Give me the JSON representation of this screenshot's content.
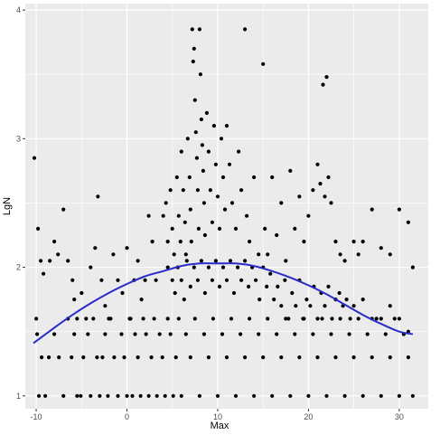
{
  "chart_data": {
    "type": "scatter",
    "title": "",
    "xlabel": "Max",
    "ylabel": "LgN",
    "xlim": [
      -11.2,
      33.2
    ],
    "ylim": [
      0.9,
      4.05
    ],
    "x_ticks": [
      -10,
      0,
      10,
      20,
      30
    ],
    "y_ticks": [
      1,
      2,
      3,
      4
    ],
    "x_tick_labels": [
      "-10",
      "0",
      "10",
      "20",
      "30"
    ],
    "y_tick_labels": [
      "1",
      "2",
      "3",
      "4"
    ],
    "grid": true,
    "legend": "none",
    "colors": {
      "panel": "#ebebeb",
      "grid": "#ffffff",
      "points": "#000000",
      "fit": "#2b2bc8"
    },
    "fit_line": {
      "x": [
        -10.3,
        -8,
        -6,
        -4,
        -2,
        0,
        2,
        4,
        6,
        8,
        10,
        12,
        14,
        16,
        18,
        20,
        22,
        24,
        26,
        28,
        30,
        31.5
      ],
      "y": [
        1.41,
        1.53,
        1.63,
        1.72,
        1.8,
        1.87,
        1.93,
        1.97,
        2.01,
        2.03,
        2.03,
        2.03,
        2.01,
        1.97,
        1.92,
        1.86,
        1.79,
        1.71,
        1.63,
        1.56,
        1.5,
        1.48
      ]
    },
    "series": [
      {
        "points": [
          [
            -10.2,
            2.85
          ],
          [
            -9.8,
            2.3
          ],
          [
            -9.5,
            2.05
          ],
          [
            -9.2,
            1.95
          ],
          [
            -8.5,
            2.05
          ],
          [
            -8.0,
            2.2
          ],
          [
            -7.6,
            2.1
          ],
          [
            -7.0,
            2.45
          ],
          [
            -6.5,
            2.05
          ],
          [
            -6.0,
            1.9
          ],
          [
            -5.8,
            1.75
          ],
          [
            -5.5,
            1.6
          ],
          [
            -5.0,
            1.8
          ],
          [
            -4.5,
            1.6
          ],
          [
            -4.0,
            2.0
          ],
          [
            -3.5,
            2.15
          ],
          [
            -3.2,
            2.55
          ],
          [
            -2.8,
            1.9
          ],
          [
            -2.4,
            1.7
          ],
          [
            -2.0,
            1.6
          ],
          [
            -1.5,
            2.1
          ],
          [
            -1.0,
            1.9
          ],
          [
            -0.5,
            1.8
          ],
          [
            0.0,
            2.15
          ],
          [
            0.4,
            1.6
          ],
          [
            0.8,
            1.9
          ],
          [
            1.2,
            2.05
          ],
          [
            1.6,
            1.75
          ],
          [
            2.0,
            1.9
          ],
          [
            2.4,
            2.4
          ],
          [
            2.8,
            2.2
          ],
          [
            3.2,
            1.9
          ],
          [
            -10.0,
            1.6
          ],
          [
            -9.9,
            1.48
          ],
          [
            -9.7,
            1.0
          ],
          [
            -9.4,
            1.3
          ],
          [
            -9.0,
            1.0
          ],
          [
            -8.6,
            1.3
          ],
          [
            -8.0,
            1.48
          ],
          [
            -7.5,
            1.3
          ],
          [
            -7.0,
            1.0
          ],
          [
            -6.5,
            1.6
          ],
          [
            -6.1,
            1.3
          ],
          [
            -5.8,
            1.48
          ],
          [
            -5.5,
            1.0
          ],
          [
            -5.1,
            1.0
          ],
          [
            -4.8,
            1.3
          ],
          [
            -4.3,
            1.48
          ],
          [
            -4.0,
            1.0
          ],
          [
            -3.7,
            1.6
          ],
          [
            -3.3,
            1.3
          ],
          [
            -3.0,
            1.0
          ],
          [
            -2.7,
            1.3
          ],
          [
            -2.4,
            1.48
          ],
          [
            -2.1,
            1.0
          ],
          [
            -1.8,
            1.6
          ],
          [
            -1.4,
            1.3
          ],
          [
            -1.0,
            1.0
          ],
          [
            -0.6,
            1.48
          ],
          [
            -0.3,
            1.3
          ],
          [
            0.0,
            1.0
          ],
          [
            0.3,
            1.6
          ],
          [
            0.6,
            1.0
          ],
          [
            0.9,
            1.48
          ],
          [
            1.2,
            1.3
          ],
          [
            1.5,
            1.0
          ],
          [
            1.8,
            1.6
          ],
          [
            2.1,
            1.48
          ],
          [
            2.4,
            1.0
          ],
          [
            2.7,
            1.3
          ],
          [
            3.0,
            1.6
          ],
          [
            3.3,
            1.0
          ],
          [
            3.6,
            1.48
          ],
          [
            3.9,
            1.3
          ],
          [
            4.2,
            1.0
          ],
          [
            4.5,
            1.6
          ],
          [
            4.8,
            1.48
          ],
          [
            5.1,
            1.0
          ],
          [
            5.4,
            1.3
          ],
          [
            5.7,
            1.6
          ],
          [
            6.0,
            1.0
          ],
          [
            4.0,
            2.4
          ],
          [
            4.3,
            2.5
          ],
          [
            4.5,
            2.2
          ],
          [
            4.8,
            2.6
          ],
          [
            5.0,
            2.3
          ],
          [
            5.2,
            2.1
          ],
          [
            5.5,
            2.7
          ],
          [
            5.7,
            2.4
          ],
          [
            5.9,
            2.2
          ],
          [
            6.0,
            2.9
          ],
          [
            6.2,
            2.6
          ],
          [
            6.4,
            2.35
          ],
          [
            6.5,
            2.1
          ],
          [
            6.7,
            3.0
          ],
          [
            6.9,
            2.7
          ],
          [
            7.0,
            2.45
          ],
          [
            7.1,
            2.2
          ],
          [
            7.2,
            3.85
          ],
          [
            7.3,
            3.6
          ],
          [
            7.4,
            3.7
          ],
          [
            7.5,
            3.3
          ],
          [
            7.6,
            3.05
          ],
          [
            7.7,
            2.85
          ],
          [
            7.8,
            2.6
          ],
          [
            7.9,
            2.3
          ],
          [
            8.0,
            3.85
          ],
          [
            8.1,
            3.5
          ],
          [
            8.2,
            3.15
          ],
          [
            8.3,
            2.95
          ],
          [
            8.4,
            2.75
          ],
          [
            8.5,
            2.5
          ],
          [
            8.6,
            2.25
          ],
          [
            8.8,
            3.2
          ],
          [
            9.0,
            2.9
          ],
          [
            9.2,
            2.6
          ],
          [
            9.4,
            2.35
          ],
          [
            9.6,
            3.1
          ],
          [
            9.8,
            2.8
          ],
          [
            10.0,
            2.55
          ],
          [
            10.2,
            2.3
          ],
          [
            10.4,
            3.0
          ],
          [
            10.6,
            2.7
          ],
          [
            10.8,
            2.45
          ],
          [
            11.0,
            3.1
          ],
          [
            11.3,
            2.8
          ],
          [
            11.6,
            2.5
          ],
          [
            12.0,
            2.3
          ],
          [
            12.3,
            2.9
          ],
          [
            12.6,
            2.6
          ],
          [
            13.0,
            3.85
          ],
          [
            13.2,
            2.4
          ],
          [
            13.5,
            2.2
          ],
          [
            14.0,
            2.7
          ],
          [
            14.5,
            2.1
          ],
          [
            15.0,
            3.58
          ],
          [
            15.2,
            2.3
          ],
          [
            15.5,
            2.1
          ],
          [
            16.0,
            2.7
          ],
          [
            16.5,
            2.25
          ],
          [
            17.0,
            2.5
          ],
          [
            17.5,
            2.05
          ],
          [
            18.0,
            2.75
          ],
          [
            18.5,
            2.3
          ],
          [
            19.0,
            2.55
          ],
          [
            19.5,
            2.2
          ],
          [
            20.0,
            2.4
          ],
          [
            20.5,
            2.6
          ],
          [
            21.0,
            2.8
          ],
          [
            21.3,
            2.65
          ],
          [
            21.6,
            3.42
          ],
          [
            21.8,
            2.55
          ],
          [
            22.0,
            3.48
          ],
          [
            22.2,
            2.7
          ],
          [
            22.5,
            2.5
          ],
          [
            23.0,
            2.2
          ],
          [
            23.5,
            2.1
          ],
          [
            24.0,
            2.05
          ],
          [
            25.0,
            2.2
          ],
          [
            25.5,
            2.1
          ],
          [
            26.0,
            2.2
          ],
          [
            27.0,
            2.45
          ],
          [
            28.0,
            2.15
          ],
          [
            29.0,
            2.1
          ],
          [
            30.0,
            2.45
          ],
          [
            31.0,
            2.35
          ],
          [
            31.5,
            2.0
          ],
          [
            4.5,
            2.0
          ],
          [
            5.0,
            1.9
          ],
          [
            5.3,
            1.8
          ],
          [
            5.6,
            2.0
          ],
          [
            6.0,
            1.9
          ],
          [
            6.3,
            1.75
          ],
          [
            6.6,
            2.05
          ],
          [
            7.0,
            1.85
          ],
          [
            7.4,
            2.0
          ],
          [
            7.8,
            1.9
          ],
          [
            8.2,
            2.05
          ],
          [
            8.6,
            1.8
          ],
          [
            9.0,
            2.0
          ],
          [
            9.4,
            1.9
          ],
          [
            9.8,
            2.05
          ],
          [
            10.2,
            1.85
          ],
          [
            10.6,
            2.0
          ],
          [
            11.0,
            1.9
          ],
          [
            11.4,
            2.05
          ],
          [
            11.8,
            1.8
          ],
          [
            12.2,
            2.0
          ],
          [
            12.6,
            1.9
          ],
          [
            13.0,
            2.05
          ],
          [
            13.4,
            1.85
          ],
          [
            13.8,
            2.0
          ],
          [
            14.2,
            1.9
          ],
          [
            14.6,
            1.75
          ],
          [
            15.0,
            2.0
          ],
          [
            15.4,
            1.85
          ],
          [
            15.8,
            1.95
          ],
          [
            16.2,
            1.75
          ],
          [
            16.6,
            1.85
          ],
          [
            17.0,
            1.7
          ],
          [
            17.4,
            1.9
          ],
          [
            17.8,
            1.6
          ],
          [
            18.2,
            1.8
          ],
          [
            18.6,
            1.7
          ],
          [
            19.0,
            1.9
          ],
          [
            19.4,
            1.6
          ],
          [
            19.8,
            1.75
          ],
          [
            20.2,
            1.7
          ],
          [
            20.6,
            1.85
          ],
          [
            21.0,
            1.6
          ],
          [
            21.4,
            1.8
          ],
          [
            21.8,
            1.7
          ],
          [
            22.2,
            1.85
          ],
          [
            22.6,
            1.6
          ],
          [
            23.0,
            1.75
          ],
          [
            23.4,
            1.8
          ],
          [
            23.8,
            1.7
          ],
          [
            24.2,
            1.75
          ],
          [
            24.6,
            1.6
          ],
          [
            25.0,
            1.7
          ],
          [
            26.0,
            1.75
          ],
          [
            27.0,
            1.6
          ],
          [
            28.0,
            1.6
          ],
          [
            29.0,
            1.7
          ],
          [
            30.0,
            1.6
          ],
          [
            31.0,
            1.5
          ],
          [
            6.5,
            1.48
          ],
          [
            7.0,
            1.3
          ],
          [
            7.5,
            1.6
          ],
          [
            8.0,
            1.0
          ],
          [
            8.5,
            1.48
          ],
          [
            9.0,
            1.3
          ],
          [
            9.5,
            1.6
          ],
          [
            10.0,
            1.0
          ],
          [
            10.5,
            1.48
          ],
          [
            11.0,
            1.3
          ],
          [
            11.5,
            1.6
          ],
          [
            12.0,
            1.0
          ],
          [
            12.5,
            1.48
          ],
          [
            13.0,
            1.3
          ],
          [
            13.5,
            1.6
          ],
          [
            14.0,
            1.0
          ],
          [
            14.5,
            1.48
          ],
          [
            15.0,
            1.3
          ],
          [
            15.5,
            1.6
          ],
          [
            16.0,
            1.0
          ],
          [
            16.5,
            1.48
          ],
          [
            17.0,
            1.3
          ],
          [
            17.5,
            1.6
          ],
          [
            18.0,
            1.0
          ],
          [
            18.5,
            1.48
          ],
          [
            19.0,
            1.3
          ],
          [
            19.5,
            1.6
          ],
          [
            20.0,
            1.0
          ],
          [
            20.5,
            1.48
          ],
          [
            21.0,
            1.3
          ],
          [
            21.5,
            1.6
          ],
          [
            22.0,
            1.0
          ],
          [
            22.5,
            1.48
          ],
          [
            23.0,
            1.3
          ],
          [
            23.5,
            1.6
          ],
          [
            24.0,
            1.0
          ],
          [
            24.5,
            1.48
          ],
          [
            25.0,
            1.3
          ],
          [
            25.5,
            1.6
          ],
          [
            26.0,
            1.0
          ],
          [
            26.5,
            1.48
          ],
          [
            27.0,
            1.3
          ],
          [
            27.5,
            1.6
          ],
          [
            28.0,
            1.0
          ],
          [
            28.5,
            1.48
          ],
          [
            29.0,
            1.3
          ],
          [
            29.5,
            1.6
          ],
          [
            30.0,
            1.0
          ],
          [
            30.5,
            1.48
          ],
          [
            31.0,
            1.3
          ],
          [
            31.5,
            1.0
          ]
        ]
      }
    ]
  }
}
